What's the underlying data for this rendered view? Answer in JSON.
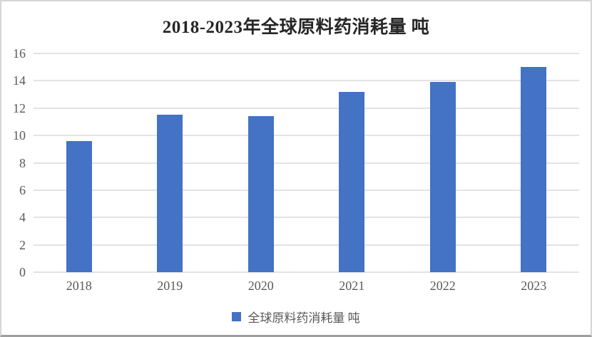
{
  "chart_data": {
    "type": "bar",
    "title": "2018-2023年全球原料药消耗量 吨",
    "categories": [
      "2018",
      "2019",
      "2020",
      "2021",
      "2022",
      "2023"
    ],
    "values": [
      9.6,
      11.5,
      11.4,
      13.2,
      13.9,
      15.0
    ],
    "series_name": "全球原料药消耗量 吨",
    "xlabel": "",
    "ylabel": "",
    "ylim": [
      0,
      16
    ],
    "yticks": [
      0,
      2,
      4,
      6,
      8,
      10,
      12,
      14,
      16
    ],
    "grid": true,
    "legend_position": "bottom",
    "bar_color": "#4472c4"
  },
  "colors": {
    "bar": "#4472c4",
    "title_text": "#262626",
    "axis_text": "#595959",
    "gridline": "#e3e3e3",
    "frame_border": "#d6d6d6",
    "frame_border_bottom": "#9e9e9e",
    "background": "#ffffff"
  }
}
